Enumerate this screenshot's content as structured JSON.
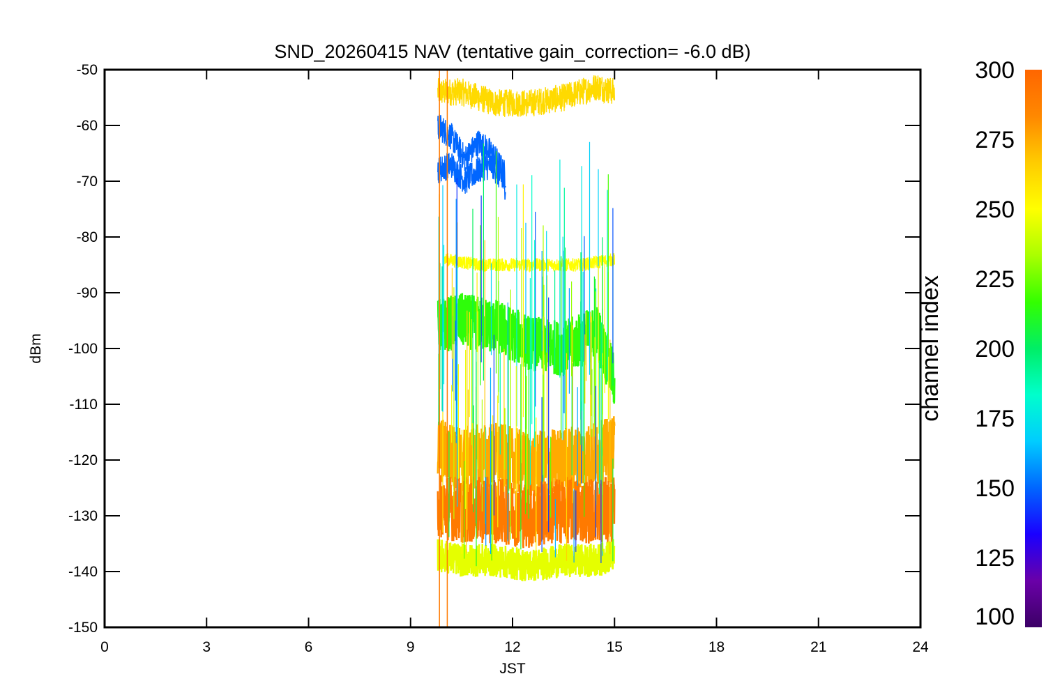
{
  "chart_data": {
    "type": "line",
    "title": "SND_20260415 NAV (tentative gain_correction= -6.0 dB)",
    "xlabel": "JST",
    "ylabel": "dBm",
    "xlim": [
      0,
      24
    ],
    "ylim": [
      -150,
      -50
    ],
    "x_ticks": [
      0,
      3,
      6,
      9,
      12,
      15,
      18,
      21,
      24
    ],
    "y_ticks": [
      -50,
      -60,
      -70,
      -80,
      -90,
      -100,
      -110,
      -120,
      -130,
      -140,
      -150
    ],
    "x_tick_labels": [
      "0",
      "3",
      "6",
      "9",
      "12",
      "15",
      "18",
      "21",
      "24"
    ],
    "y_tick_labels": [
      "-50",
      "-60",
      "-70",
      "-80",
      "-90",
      "-100",
      "-110",
      "-120",
      "-130",
      "-140",
      "-150"
    ],
    "colorbar": {
      "label": "channel index",
      "range": [
        100,
        300
      ],
      "ticks": [
        300,
        275,
        250,
        225,
        200,
        175,
        150,
        125,
        100
      ],
      "tick_labels": [
        "300",
        "275",
        "250",
        "225",
        "200",
        "175",
        "150",
        "125",
        "100"
      ],
      "colormap": [
        "#3b0066",
        "#6a00a8",
        "#1a00ff",
        "#0066ff",
        "#00ccff",
        "#00ffcc",
        "#00ee66",
        "#33ff00",
        "#aaff00",
        "#ffff00",
        "#ffcc00",
        "#ff8800",
        "#ff6600"
      ]
    },
    "data_x_range": [
      9.8,
      15.0
    ],
    "series": [
      {
        "channel": 262,
        "approx_dbm": [
          [
            9.8,
            -54
          ],
          [
            10.5,
            -54
          ],
          [
            11.5,
            -56
          ],
          [
            12.5,
            -56
          ],
          [
            13.5,
            -55
          ],
          [
            14.5,
            -53
          ],
          [
            15.0,
            -54
          ]
        ]
      },
      {
        "channel": 150,
        "approx_dbm": [
          [
            9.8,
            -60
          ],
          [
            10.2,
            -62
          ],
          [
            10.6,
            -66
          ],
          [
            11.0,
            -63
          ],
          [
            11.4,
            -65
          ],
          [
            11.8,
            -69
          ]
        ]
      },
      {
        "channel": 150,
        "approx_dbm": [
          [
            9.8,
            -68
          ],
          [
            10.2,
            -67
          ],
          [
            10.6,
            -70
          ],
          [
            11.0,
            -68
          ],
          [
            11.4,
            -67
          ],
          [
            11.8,
            -71
          ]
        ]
      },
      {
        "channel": 250,
        "approx_dbm": [
          [
            10.0,
            -84
          ],
          [
            11.0,
            -85
          ],
          [
            12.0,
            -85
          ],
          [
            13.0,
            -85
          ],
          [
            14.0,
            -85
          ],
          [
            15.0,
            -84
          ]
        ]
      },
      {
        "channel": 215,
        "approx_dbm": [
          [
            9.8,
            -96
          ],
          [
            10.5,
            -95
          ],
          [
            11.5,
            -96
          ],
          [
            12.5,
            -99
          ],
          [
            13.5,
            -100
          ],
          [
            14.5,
            -97
          ],
          [
            15.0,
            -106
          ]
        ]
      },
      {
        "channel": 275,
        "approx_dbm": [
          [
            9.8,
            -118
          ],
          [
            10.5,
            -120
          ],
          [
            11.5,
            -119
          ],
          [
            12.5,
            -121
          ],
          [
            13.5,
            -120
          ],
          [
            14.5,
            -119
          ],
          [
            15.0,
            -118
          ]
        ]
      },
      {
        "channel": 290,
        "approx_dbm": [
          [
            9.8,
            -128
          ],
          [
            10.5,
            -129
          ],
          [
            11.5,
            -129
          ],
          [
            12.5,
            -130
          ],
          [
            13.5,
            -129
          ],
          [
            14.5,
            -129
          ],
          [
            15.0,
            -129
          ]
        ]
      },
      {
        "channel": 245,
        "approx_dbm": [
          [
            9.8,
            -137
          ],
          [
            10.5,
            -138
          ],
          [
            11.5,
            -138
          ],
          [
            12.5,
            -139
          ],
          [
            13.5,
            -138
          ],
          [
            14.5,
            -138
          ],
          [
            15.0,
            -137
          ]
        ]
      }
    ],
    "grid": false,
    "legend": "colorbar-right"
  }
}
